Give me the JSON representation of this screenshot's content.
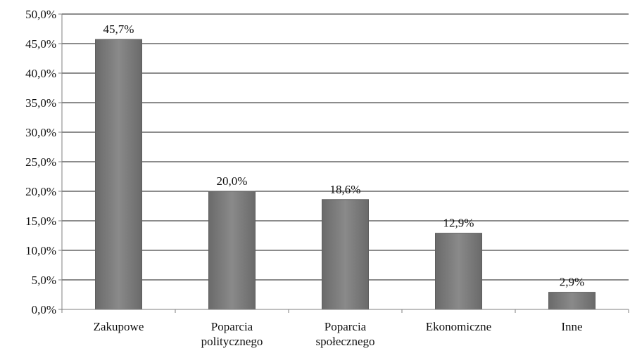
{
  "chart_data": {
    "type": "bar",
    "categories": [
      [
        "Zakupowe"
      ],
      [
        "Poparcia",
        "politycznego"
      ],
      [
        "Poparcia",
        "społecznego"
      ],
      [
        "Ekonomiczne"
      ],
      [
        "Inne"
      ]
    ],
    "values": [
      45.7,
      20.0,
      18.6,
      12.9,
      2.9
    ],
    "data_labels": [
      "45,7%",
      "20,0%",
      "18,6%",
      "12,9%",
      "2,9%"
    ],
    "y_ticks": [
      0,
      5,
      10,
      15,
      20,
      25,
      30,
      35,
      40,
      45,
      50
    ],
    "y_tick_labels": [
      "0,0%",
      "5,0%",
      "10,0%",
      "15,0%",
      "20,0%",
      "25,0%",
      "30,0%",
      "35,0%",
      "40,0%",
      "45,0%",
      "50,0%"
    ],
    "ylim": [
      0,
      50
    ],
    "grid": true,
    "title": "",
    "xlabel": "",
    "ylabel": "",
    "colors": {
      "bar": "#7a7a7a",
      "bar_edge": "#5e5e5e",
      "grid": "#1a1a1a",
      "axis": "#7f7f7f"
    }
  }
}
